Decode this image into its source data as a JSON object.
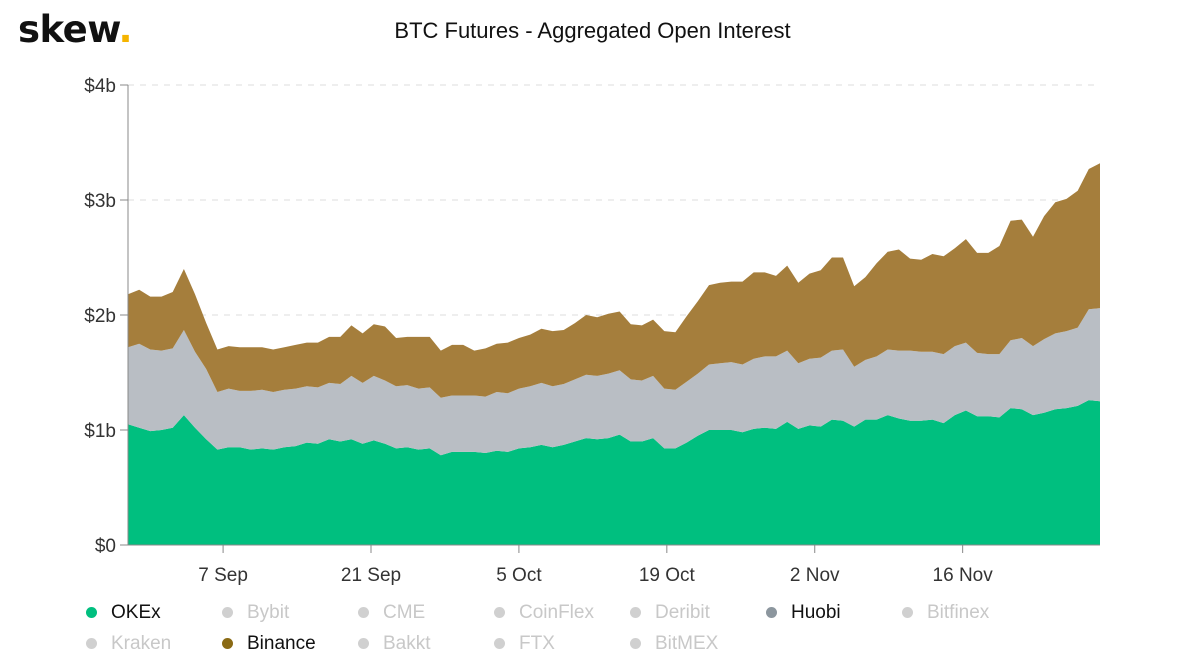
{
  "brand": {
    "name": "skew",
    "dot": "."
  },
  "chart_data": {
    "type": "area",
    "stacked": true,
    "title": "BTC Futures - Aggregated Open Interest",
    "xlabel": "",
    "ylabel": "",
    "x_start": "2020-08-29",
    "x_end": "2020-11-29",
    "x_ticks": [
      {
        "date": "2020-09-07",
        "label": "7 Sep"
      },
      {
        "date": "2020-09-21",
        "label": "21 Sep"
      },
      {
        "date": "2020-10-05",
        "label": "5 Oct"
      },
      {
        "date": "2020-10-19",
        "label": "19 Oct"
      },
      {
        "date": "2020-11-02",
        "label": "2 Nov"
      },
      {
        "date": "2020-11-16",
        "label": "16 Nov"
      }
    ],
    "ylim": [
      0,
      4
    ],
    "y_ticks": [
      {
        "value": 0,
        "label": "$0"
      },
      {
        "value": 1,
        "label": "$1b"
      },
      {
        "value": 2,
        "label": "$2b"
      },
      {
        "value": 3,
        "label": "$3b"
      },
      {
        "value": 4,
        "label": "$4b"
      }
    ],
    "y_unit": "USD billions",
    "grid": "horizontal dashed",
    "legend_position": "bottom",
    "series": [
      {
        "name": "OKEx",
        "color": "#00bf7f",
        "values": [
          1.05,
          1.02,
          0.99,
          1.0,
          1.02,
          1.13,
          1.02,
          0.92,
          0.83,
          0.85,
          0.85,
          0.83,
          0.84,
          0.83,
          0.85,
          0.86,
          0.89,
          0.88,
          0.92,
          0.9,
          0.92,
          0.88,
          0.91,
          0.88,
          0.84,
          0.85,
          0.83,
          0.84,
          0.78,
          0.81,
          0.81,
          0.81,
          0.8,
          0.82,
          0.81,
          0.84,
          0.85,
          0.87,
          0.85,
          0.87,
          0.9,
          0.93,
          0.92,
          0.93,
          0.96,
          0.9,
          0.9,
          0.93,
          0.84,
          0.84,
          0.89,
          0.95,
          1.0,
          1.0,
          1.0,
          0.98,
          1.01,
          1.02,
          1.01,
          1.07,
          1.01,
          1.04,
          1.03,
          1.09,
          1.08,
          1.03,
          1.09,
          1.09,
          1.13,
          1.1,
          1.08,
          1.08,
          1.09,
          1.06,
          1.13,
          1.17,
          1.12,
          1.12,
          1.11,
          1.19,
          1.18,
          1.13,
          1.15,
          1.18,
          1.19,
          1.21,
          1.26,
          1.25
        ]
      },
      {
        "name": "Huobi",
        "color": "#b9bec4",
        "values": [
          0.67,
          0.73,
          0.71,
          0.69,
          0.69,
          0.74,
          0.66,
          0.61,
          0.5,
          0.51,
          0.49,
          0.51,
          0.51,
          0.5,
          0.5,
          0.5,
          0.49,
          0.49,
          0.49,
          0.5,
          0.55,
          0.53,
          0.56,
          0.55,
          0.54,
          0.54,
          0.53,
          0.53,
          0.5,
          0.49,
          0.49,
          0.49,
          0.49,
          0.51,
          0.51,
          0.52,
          0.53,
          0.54,
          0.53,
          0.53,
          0.54,
          0.55,
          0.55,
          0.56,
          0.56,
          0.54,
          0.53,
          0.54,
          0.52,
          0.51,
          0.53,
          0.54,
          0.57,
          0.58,
          0.59,
          0.59,
          0.61,
          0.62,
          0.63,
          0.62,
          0.57,
          0.58,
          0.6,
          0.6,
          0.62,
          0.52,
          0.52,
          0.55,
          0.57,
          0.59,
          0.61,
          0.6,
          0.59,
          0.6,
          0.6,
          0.59,
          0.55,
          0.54,
          0.55,
          0.59,
          0.62,
          0.6,
          0.64,
          0.66,
          0.67,
          0.68,
          0.79,
          0.81
        ]
      },
      {
        "name": "Binance",
        "color": "#a57e3c",
        "values": [
          0.46,
          0.47,
          0.46,
          0.47,
          0.49,
          0.53,
          0.5,
          0.4,
          0.37,
          0.37,
          0.38,
          0.38,
          0.37,
          0.37,
          0.37,
          0.38,
          0.38,
          0.39,
          0.4,
          0.41,
          0.44,
          0.43,
          0.45,
          0.47,
          0.42,
          0.42,
          0.45,
          0.44,
          0.41,
          0.44,
          0.44,
          0.39,
          0.42,
          0.42,
          0.44,
          0.44,
          0.45,
          0.47,
          0.48,
          0.47,
          0.49,
          0.52,
          0.51,
          0.52,
          0.51,
          0.48,
          0.48,
          0.49,
          0.5,
          0.5,
          0.57,
          0.63,
          0.69,
          0.7,
          0.7,
          0.72,
          0.75,
          0.73,
          0.7,
          0.74,
          0.7,
          0.74,
          0.76,
          0.81,
          0.8,
          0.7,
          0.72,
          0.81,
          0.85,
          0.88,
          0.8,
          0.8,
          0.85,
          0.85,
          0.85,
          0.9,
          0.87,
          0.88,
          0.94,
          1.04,
          1.03,
          0.95,
          1.07,
          1.14,
          1.15,
          1.19,
          1.22,
          1.26
        ]
      }
    ],
    "legend": [
      {
        "name": "OKEx",
        "color": "#00bf7f",
        "active": true
      },
      {
        "name": "Bybit",
        "color": "#d0d0d0",
        "active": false
      },
      {
        "name": "CME",
        "color": "#d0d0d0",
        "active": false
      },
      {
        "name": "CoinFlex",
        "color": "#d0d0d0",
        "active": false
      },
      {
        "name": "Deribit",
        "color": "#d0d0d0",
        "active": false
      },
      {
        "name": "Huobi",
        "color": "#8c969e",
        "active": true
      },
      {
        "name": "Bitfinex",
        "color": "#d0d0d0",
        "active": false
      },
      {
        "name": "Kraken",
        "color": "#d0d0d0",
        "active": false
      },
      {
        "name": "Binance",
        "color": "#8a6a14",
        "active": true
      },
      {
        "name": "Bakkt",
        "color": "#d0d0d0",
        "active": false
      },
      {
        "name": "FTX",
        "color": "#d0d0d0",
        "active": false
      },
      {
        "name": "BitMEX",
        "color": "#d0d0d0",
        "active": false
      }
    ]
  }
}
